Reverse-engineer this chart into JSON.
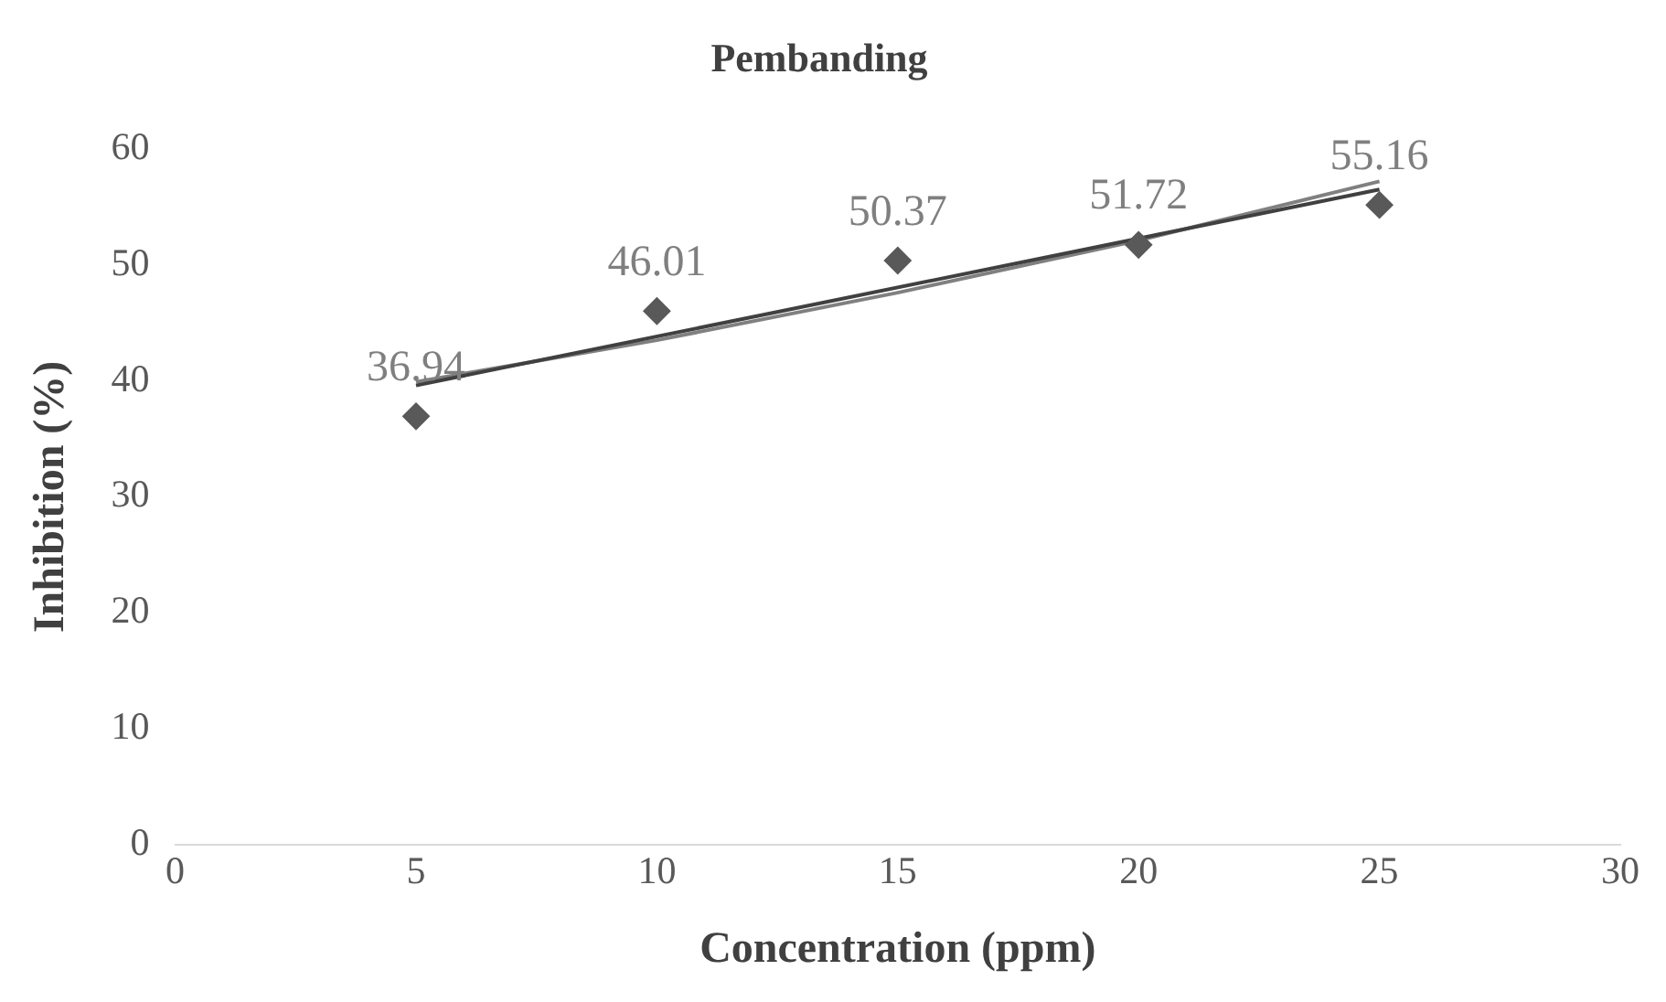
{
  "chart_data": {
    "type": "scatter",
    "title": "Pembanding",
    "xlabel": "Concentration (ppm)",
    "ylabel": "Inhibition (%)",
    "xlim": [
      0,
      30
    ],
    "xticks": [
      0,
      5,
      10,
      15,
      20,
      25,
      30
    ],
    "ylim": [
      0,
      60
    ],
    "yticks": [
      0,
      10,
      20,
      30,
      40,
      50,
      60
    ],
    "grid": false,
    "legend": false,
    "series": [
      {
        "marker": "diamond",
        "color": "#595959",
        "x": [
          5,
          10,
          15,
          20,
          25
        ],
        "values": [
          36.94,
          46.01,
          50.37,
          51.72,
          55.16
        ],
        "value_labels": [
          "36.94",
          "46.01",
          "50.37",
          "51.72",
          "55.16"
        ]
      },
      {
        "type": "line",
        "marker": "none",
        "color": "#404040",
        "x": [
          5,
          25
        ],
        "values": [
          39.6,
          56.5
        ]
      },
      {
        "type": "line",
        "marker": "none",
        "color": "#808080",
        "x": [
          5,
          10,
          15,
          20,
          25
        ],
        "values": [
          39.9,
          43.5,
          47.6,
          52.1,
          57.2
        ]
      }
    ]
  }
}
